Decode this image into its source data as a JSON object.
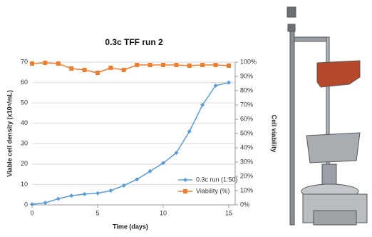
{
  "chart_data": {
    "type": "line",
    "title": "0.3c TFF run 2",
    "x_label": "Time (days)",
    "y_label": "Viable cell density (x10⁶/mL)",
    "y2_label": "Cell viability",
    "x": [
      0,
      1,
      2,
      3,
      4,
      5,
      6,
      7,
      8,
      9,
      10,
      11,
      12,
      13,
      14,
      15
    ],
    "series": [
      {
        "name": "0.3c run (1:50)",
        "color": "#5b9bd5",
        "marker": "diamond",
        "values": [
          0.3,
          1,
          3,
          4.5,
          5.3,
          5.7,
          7,
          9.5,
          12.5,
          16.5,
          20.5,
          25.5,
          36,
          49,
          58.5,
          60
        ]
      },
      {
        "name": "Viability (%)",
        "color": "#ed7d31",
        "marker": "square",
        "axis": "y2",
        "values": [
          99,
          99.5,
          99,
          95.5,
          94.5,
          92.5,
          96,
          94.5,
          98,
          98,
          98,
          98,
          97.5,
          98,
          98,
          97.5
        ]
      }
    ],
    "xlim": [
      0,
      15
    ],
    "xticks": [
      0,
      5,
      10,
      15
    ],
    "ylim": [
      0,
      70
    ],
    "yticks": [
      0,
      10,
      20,
      30,
      40,
      50,
      60,
      70
    ],
    "y2lim": [
      0,
      100
    ],
    "y2ticks": [
      {
        "value": 0,
        "label": "0%"
      },
      {
        "value": 10,
        "label": "10%"
      },
      {
        "value": 20,
        "label": "20%"
      },
      {
        "value": 30,
        "label": "30%"
      },
      {
        "value": 40,
        "label": "40%"
      },
      {
        "value": 50,
        "label": "50%"
      },
      {
        "value": 60,
        "label": "60%"
      },
      {
        "value": 70,
        "label": "70%"
      },
      {
        "value": 80,
        "label": "80%"
      },
      {
        "value": 90,
        "label": "90%"
      },
      {
        "value": 100,
        "label": "100%"
      }
    ],
    "grid": true,
    "legend": "lower right"
  }
}
